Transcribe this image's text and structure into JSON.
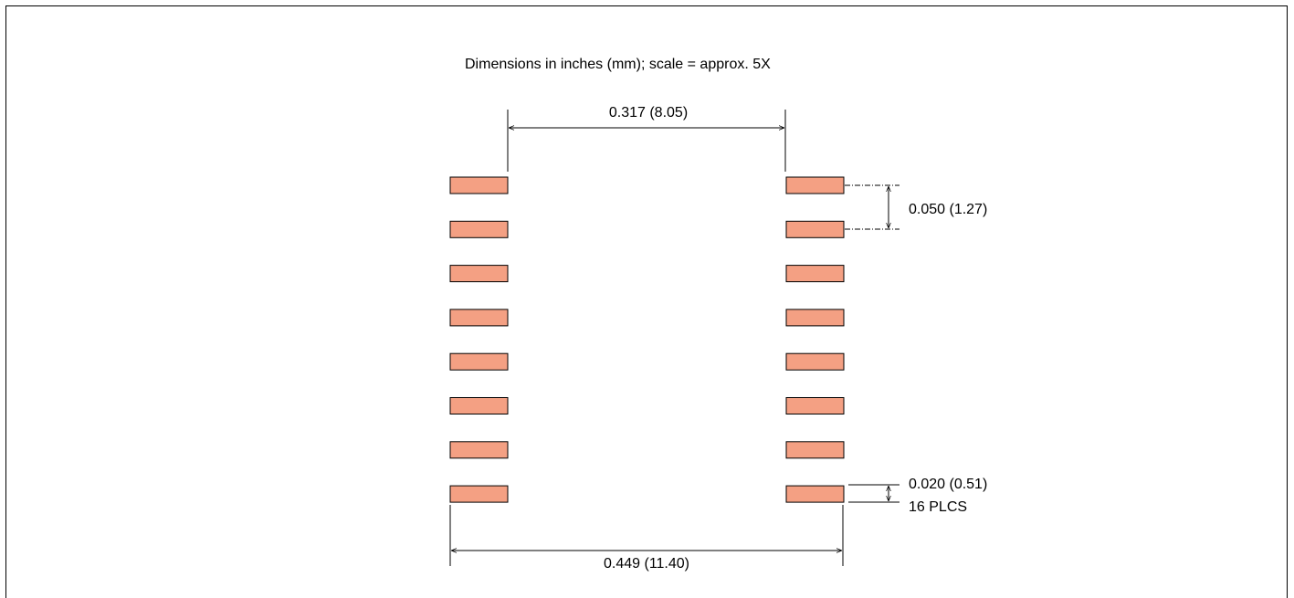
{
  "caption": "Dimensions in inches (mm); scale = approx. 5X",
  "dims": {
    "row_spacing": "0.317 (8.05)",
    "pitch": "0.050 (1.27)",
    "pad_width": "0.020 (0.51)",
    "pad_count": "16 PLCS",
    "overall_width": "0.449 (11.40)"
  },
  "pads": {
    "count_per_side": 8,
    "fill_color": "#f4a083",
    "stroke_color": "#000000"
  },
  "border_color": "#000000"
}
